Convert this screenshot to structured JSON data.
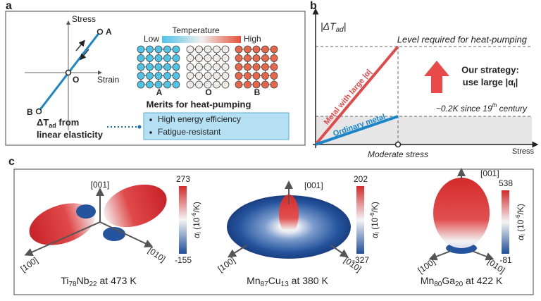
{
  "panel_labels": [
    "a",
    "b",
    "c"
  ],
  "panel_a": {
    "axes": {
      "y": "Stress",
      "x": "Strain"
    },
    "points": [
      "A",
      "O",
      "B"
    ],
    "temperature": {
      "title": "Temperature",
      "low": "Low",
      "high": "High"
    },
    "lattice_labels": [
      "A",
      "O",
      "B"
    ],
    "note": {
      "symbol": "ΔT",
      "sub": "ad",
      "rest": " from",
      "line2": "linear elasticity"
    },
    "merits": {
      "title": "Merits for heat-pumping",
      "items": [
        "High energy efficiency",
        "Fatigue-resistant"
      ]
    }
  },
  "panel_b": {
    "y_label": {
      "open": "|ΔT",
      "sub": "ad",
      "close": "|"
    },
    "x_label": "Stress",
    "level": "Level required for heat-pumping",
    "history": {
      "text": "~0.2K since 19",
      "sup": "th",
      "rest": " century"
    },
    "moderate": "Moderate stress",
    "large_line": "Metal with large |α|",
    "ordinary_line": "Ordinary metal",
    "strategy": {
      "line1": "Our strategy:",
      "line2": "use large |α",
      "sub": "l",
      "close": "|"
    }
  },
  "panel_c": {
    "axis_label": {
      "symbol": "α",
      "sub": "l",
      "open": " (10",
      "sup": "-6",
      "close": "/K)"
    },
    "materials": [
      {
        "parts": [
          "Ti",
          "78",
          "Nb",
          "22"
        ],
        "suffix": " at 473 K",
        "max": "273",
        "min": "-155",
        "directions": [
          "[001]",
          "[100]",
          "[010]"
        ]
      },
      {
        "parts": [
          "Mn",
          "87",
          "Cu",
          "13"
        ],
        "suffix": " at 380 K",
        "max": "202",
        "min": "-327",
        "directions": [
          "[001]",
          "[100]",
          "[010]"
        ]
      },
      {
        "parts": [
          "Mn",
          "80",
          "Ga",
          "20"
        ],
        "suffix": " at 422 K",
        "max": "538",
        "min": "-81",
        "directions": [
          "[001]",
          "[100]",
          "[010]"
        ]
      }
    ]
  }
}
